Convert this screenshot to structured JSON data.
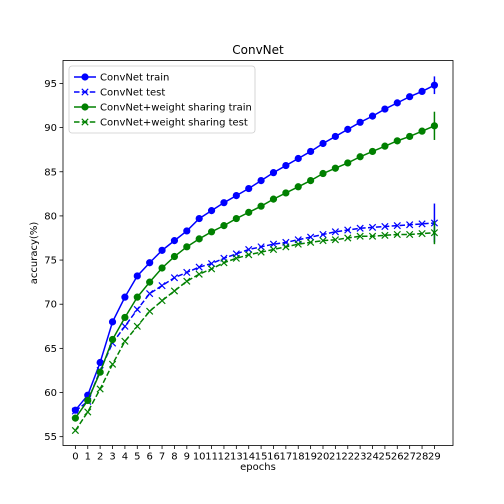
{
  "chart_data": {
    "type": "line",
    "title": "ConvNet",
    "xlabel": "epochs",
    "ylabel": "accuracy(%)",
    "x": [
      0,
      1,
      2,
      3,
      4,
      5,
      6,
      7,
      8,
      9,
      10,
      11,
      12,
      13,
      14,
      15,
      16,
      17,
      18,
      19,
      20,
      21,
      22,
      23,
      24,
      25,
      26,
      27,
      28,
      29
    ],
    "xlim": [
      -1,
      30.5
    ],
    "ylim": [
      54,
      97.6
    ],
    "yticks": [
      55,
      60,
      65,
      70,
      75,
      80,
      85,
      90,
      95
    ],
    "grid": false,
    "legend": "top-left",
    "series": [
      {
        "name": "ConvNet train",
        "color": "#0000ff",
        "linestyle": "solid",
        "marker": "circle",
        "values": [
          58.0,
          59.7,
          63.4,
          68.0,
          70.8,
          73.2,
          74.7,
          76.1,
          77.2,
          78.3,
          79.7,
          80.6,
          81.5,
          82.3,
          83.1,
          84.0,
          84.9,
          85.7,
          86.5,
          87.3,
          88.2,
          89.0,
          89.8,
          90.6,
          91.3,
          92.1,
          92.8,
          93.5,
          94.1,
          94.8
        ],
        "error_last": 1.0
      },
      {
        "name": "ConvNet test",
        "color": "#0000ff",
        "linestyle": "dashed",
        "marker": "x",
        "values": [
          57.9,
          59.0,
          62.5,
          65.6,
          67.5,
          69.4,
          71.2,
          72.1,
          73.0,
          73.6,
          74.2,
          74.6,
          75.2,
          75.7,
          76.2,
          76.5,
          76.8,
          77.0,
          77.3,
          77.6,
          77.9,
          78.2,
          78.4,
          78.6,
          78.7,
          78.8,
          78.9,
          79.0,
          79.1,
          79.2
        ],
        "error_last": 2.2
      },
      {
        "name": "ConvNet+weight sharing train",
        "color": "#008000",
        "linestyle": "solid",
        "marker": "circle",
        "values": [
          57.1,
          59.1,
          62.3,
          66.0,
          68.5,
          70.8,
          72.5,
          74.1,
          75.4,
          76.5,
          77.4,
          78.2,
          78.9,
          79.7,
          80.4,
          81.1,
          81.9,
          82.6,
          83.3,
          84.0,
          84.8,
          85.4,
          86.0,
          86.7,
          87.3,
          87.9,
          88.5,
          89.0,
          89.6,
          90.2
        ],
        "error_last": 1.6
      },
      {
        "name": "ConvNet+weight sharing test",
        "color": "#008000",
        "linestyle": "dashed",
        "marker": "x",
        "values": [
          55.7,
          57.8,
          60.4,
          63.2,
          65.8,
          67.5,
          69.2,
          70.4,
          71.5,
          72.6,
          73.4,
          74.0,
          74.7,
          75.2,
          75.6,
          75.9,
          76.2,
          76.5,
          76.8,
          77.0,
          77.2,
          77.3,
          77.5,
          77.7,
          77.7,
          77.8,
          77.9,
          77.9,
          78.0,
          78.1
        ],
        "error_last": 1.3
      }
    ]
  }
}
